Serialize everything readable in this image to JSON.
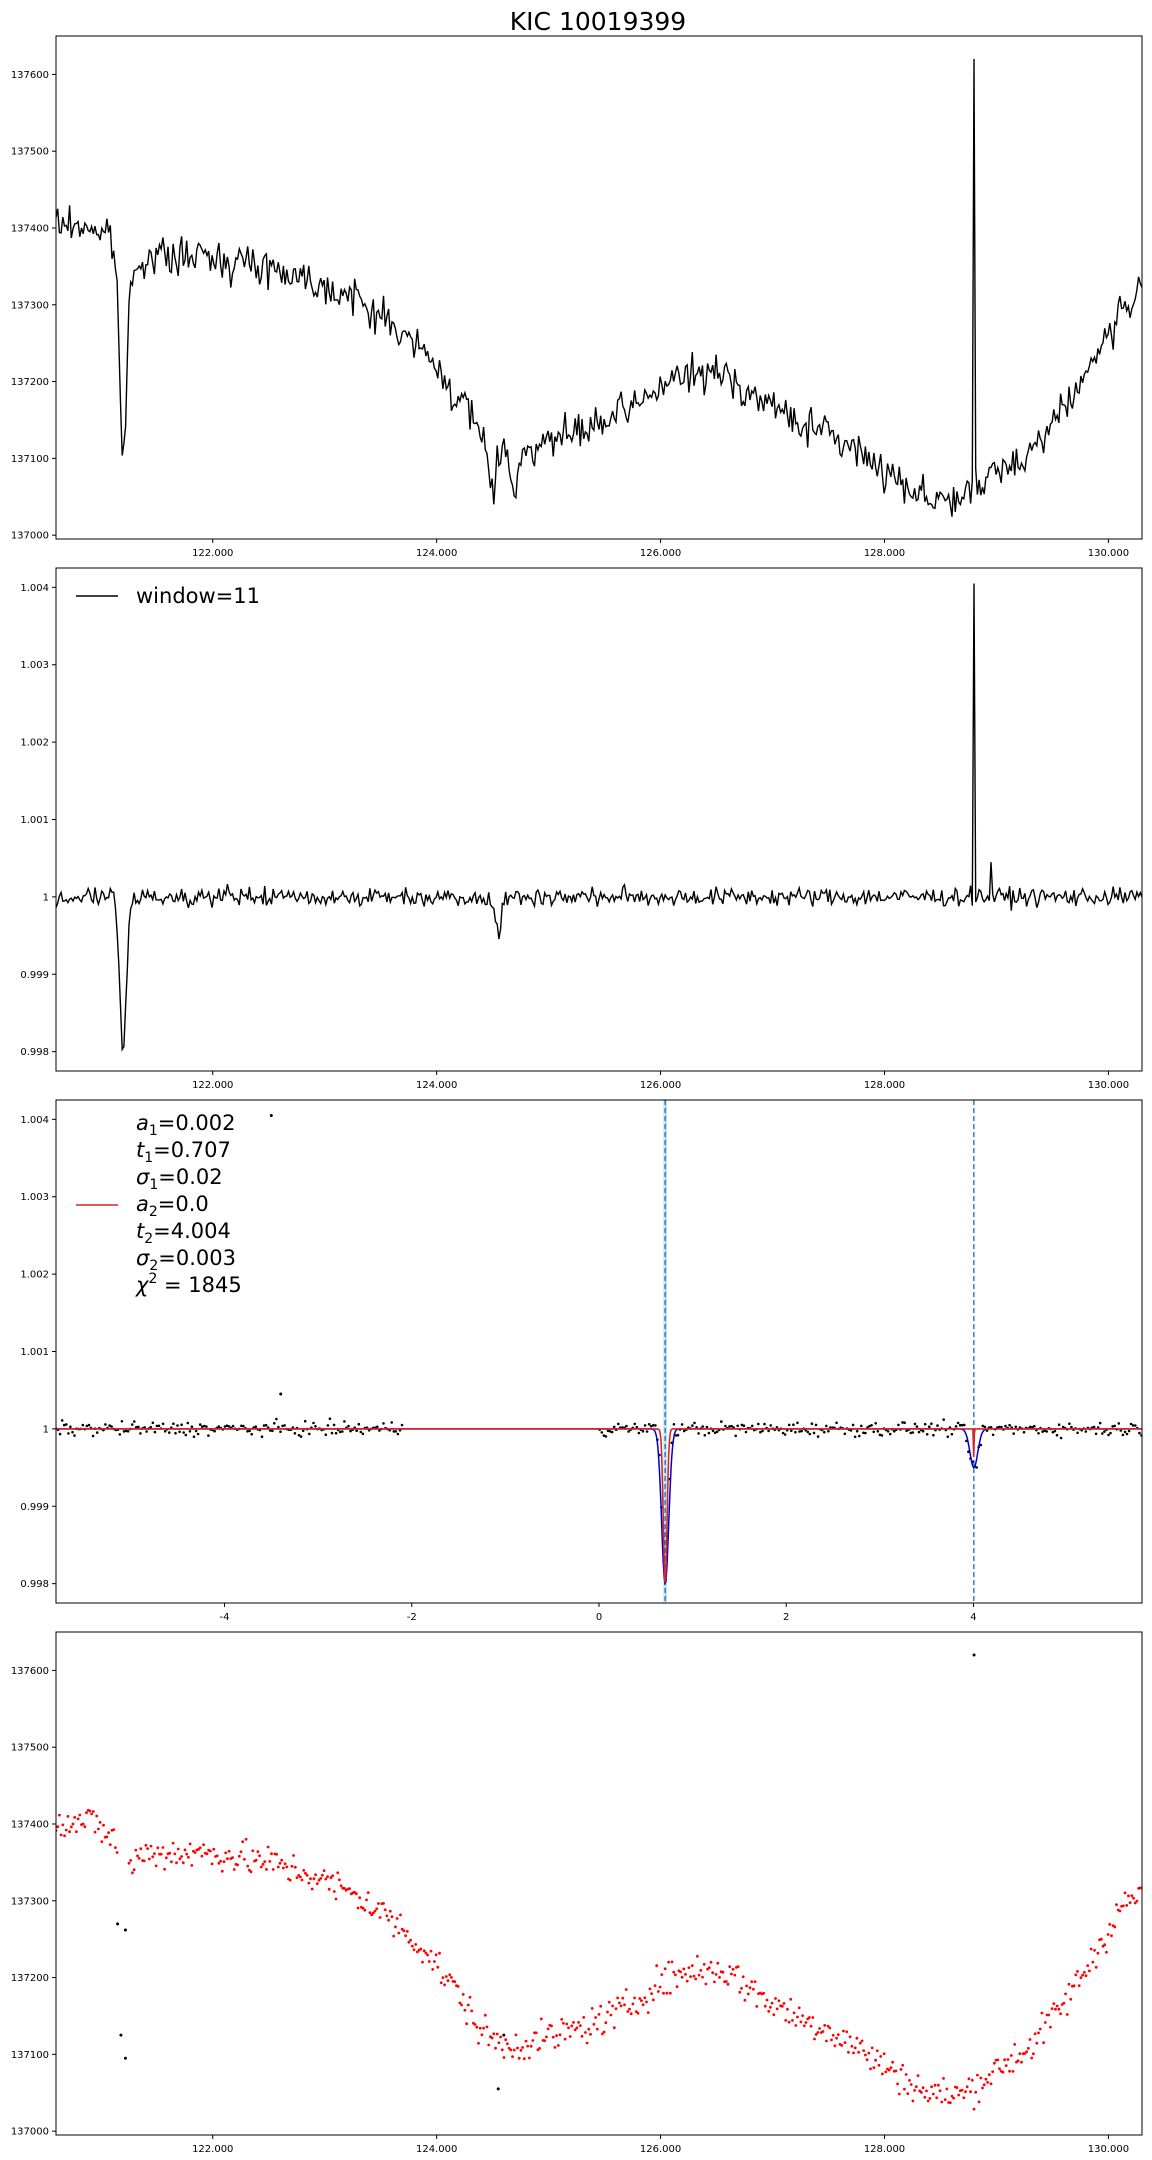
{
  "figure_title": "KIC 10019399",
  "chart_data": [
    {
      "type": "line",
      "panel": "raw-flux",
      "xlim": [
        120.6,
        130.3
      ],
      "ylim": [
        136995,
        137650
      ],
      "xticks": [
        122,
        124,
        126,
        128,
        130
      ],
      "yticks": [
        137000,
        137100,
        137200,
        137300,
        137400,
        137500,
        137600
      ],
      "series": [
        {
          "color": "#000000",
          "trend": [
            [
              120.6,
              137405
            ],
            [
              120.9,
              137402
            ],
            [
              121.1,
              137385
            ],
            [
              121.2,
              137340
            ],
            [
              121.4,
              137362
            ],
            [
              122.0,
              137362
            ],
            [
              122.5,
              137350
            ],
            [
              122.9,
              137332
            ],
            [
              123.3,
              137305
            ],
            [
              123.6,
              137275
            ],
            [
              123.9,
              137235
            ],
            [
              124.2,
              137178
            ],
            [
              124.4,
              137130
            ],
            [
              124.6,
              137110
            ],
            [
              124.8,
              137115
            ],
            [
              125.1,
              137125
            ],
            [
              125.4,
              137140
            ],
            [
              125.7,
              137160
            ],
            [
              126.0,
              137195
            ],
            [
              126.3,
              137210
            ],
            [
              126.6,
              137208
            ],
            [
              126.9,
              137175
            ],
            [
              127.2,
              137150
            ],
            [
              127.5,
              137132
            ],
            [
              127.8,
              137105
            ],
            [
              128.1,
              137075
            ],
            [
              128.4,
              137048
            ],
            [
              128.7,
              137048
            ],
            [
              129.0,
              137080
            ],
            [
              129.3,
              137110
            ],
            [
              129.6,
              137165
            ],
            [
              129.9,
              137235
            ],
            [
              130.1,
              137290
            ],
            [
              130.3,
              137310
            ]
          ],
          "dips": [
            {
              "x": 121.2,
              "y": 137095
            },
            {
              "x": 124.5,
              "y": 137060
            },
            {
              "x": 124.7,
              "y": 137055
            }
          ],
          "spikes": [
            {
              "x": 128.8,
              "y": 137620
            }
          ]
        }
      ]
    },
    {
      "type": "line",
      "panel": "detrended",
      "xlim": [
        120.6,
        130.3
      ],
      "ylim": [
        0.99775,
        1.00425
      ],
      "xticks": [
        122,
        124,
        126,
        128,
        130
      ],
      "yticks": [
        0.998,
        0.999,
        1.0,
        1.001,
        1.002,
        1.003,
        1.004
      ],
      "legend": "window=11",
      "series": [
        {
          "name": "window=11",
          "color": "#000000",
          "baseline": 1.0,
          "dips": [
            {
              "x": 121.2,
              "y": 0.998
            },
            {
              "x": 124.55,
              "y": 0.99955
            }
          ],
          "spikes": [
            {
              "x": 128.8,
              "y": 1.00405
            },
            {
              "x": 128.95,
              "y": 1.00045
            }
          ]
        }
      ]
    },
    {
      "type": "scatter",
      "panel": "folded-fit",
      "xlim": [
        -5.8,
        5.8
      ],
      "ylim": [
        0.99775,
        1.00425
      ],
      "xticks": [
        -4,
        -2,
        0,
        2,
        4
      ],
      "yticks": [
        0.998,
        0.999,
        1.0,
        1.001,
        1.002,
        1.003,
        1.004
      ],
      "gap": [
        -2.1,
        0.0
      ],
      "outliers": [
        {
          "x": -3.5,
          "y": 1.00405
        },
        {
          "x": -3.4,
          "y": 1.00045
        }
      ],
      "fit_params": [
        "a_1=0.002",
        "t_1=0.707",
        "σ_1=0.02",
        "a_2=0.0",
        "t_2=4.004",
        "σ_2=0.003",
        "χ^2 = 1845"
      ],
      "fit": {
        "a1": 0.002,
        "t1": 0.707,
        "sigma1": 0.02,
        "a2": 0.0005,
        "t2": 4.004,
        "sigma2": 0.003
      },
      "vlines": [
        0.707,
        4.004
      ],
      "colors": {
        "points": "#000000",
        "model": "#d62728",
        "components": "#0000cc",
        "vline": "#1f77b4",
        "span": "#add8e6"
      }
    },
    {
      "type": "scatter",
      "panel": "raw-flux-clipped",
      "xlim": [
        120.6,
        130.3
      ],
      "ylim": [
        136995,
        137650
      ],
      "xticks": [
        122,
        124,
        126,
        128,
        130
      ],
      "yticks": [
        137000,
        137100,
        137200,
        137300,
        137400,
        137500,
        137600
      ],
      "rejected": [
        {
          "x": 121.15,
          "y": 137270
        },
        {
          "x": 121.22,
          "y": 137262
        },
        {
          "x": 121.18,
          "y": 137125
        },
        {
          "x": 121.22,
          "y": 137095
        },
        {
          "x": 124.55,
          "y": 137055
        },
        {
          "x": 124.6,
          "y": 137125
        },
        {
          "x": 128.8,
          "y": 137620
        }
      ],
      "colors": {
        "kept": "#ff0000",
        "rejected": "#000000"
      }
    }
  ]
}
